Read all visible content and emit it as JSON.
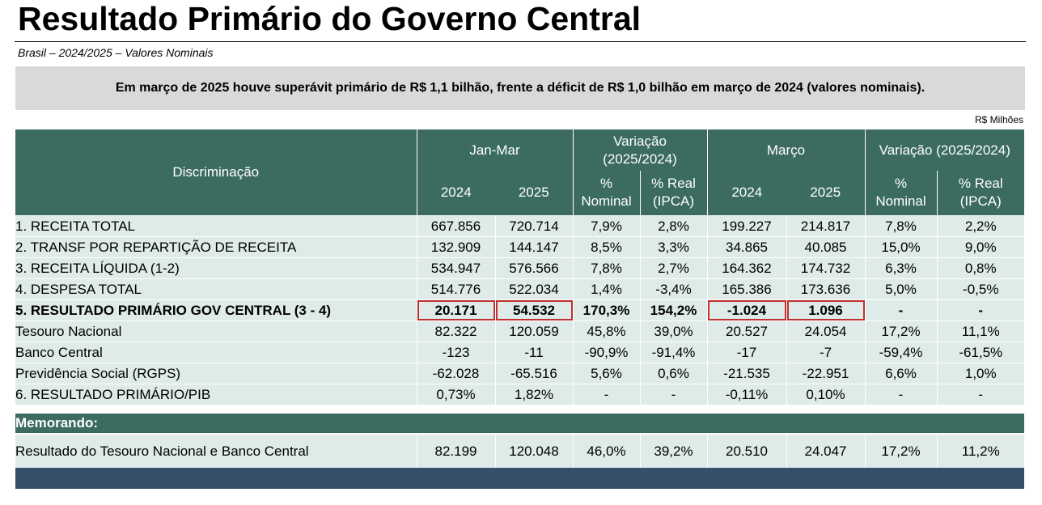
{
  "title": "Resultado Primário do Governo Central",
  "subtitle": "Brasil – 2024/2025 – Valores Nominais",
  "banner": "Em março de 2025 houve superávit primário de R$ 1,1 bilhão, frente a déficit de R$ 1,0 bilhão em março de 2024 (valores nominais).",
  "unit": "R$ Milhões",
  "header": {
    "discriminacao": "Discriminação",
    "janmar": "Jan-Mar",
    "variacao1_l1": "Variação",
    "variacao1_l2": "(2025/2024)",
    "marco": "Março",
    "variacao2": "Variação (2025/2024)",
    "y2024": "2024",
    "y2025": "2025",
    "pct_l1": "%",
    "pct_l2": "Nominal",
    "real_l1": "% Real",
    "real_l2": "(IPCA)"
  },
  "rows": [
    {
      "label": "1. RECEITA TOTAL",
      "v": [
        "667.856",
        "720.714",
        "7,9%",
        "2,8%",
        "199.227",
        "214.817",
        "7,8%",
        "2,2%"
      ]
    },
    {
      "label": "2. TRANSF POR REPARTIÇÃO DE RECEITA",
      "v": [
        "132.909",
        "144.147",
        "8,5%",
        "3,3%",
        "34.865",
        "40.085",
        "15,0%",
        "9,0%"
      ]
    },
    {
      "label": "3. RECEITA LÍQUIDA (1-2)",
      "v": [
        "534.947",
        "576.566",
        "7,8%",
        "2,7%",
        "164.362",
        "174.732",
        "6,3%",
        "0,8%"
      ]
    },
    {
      "label": "4. DESPESA TOTAL",
      "v": [
        "514.776",
        "522.034",
        "1,4%",
        "-3,4%",
        "165.386",
        "173.636",
        "5,0%",
        "-0,5%"
      ]
    },
    {
      "label": "5. RESULTADO PRIMÁRIO GOV CENTRAL (3 - 4)",
      "v": [
        "20.171",
        "54.532",
        "170,3%",
        "154,2%",
        "-1.024",
        "1.096",
        "-",
        "-"
      ]
    },
    {
      "label": "Tesouro Nacional",
      "v": [
        "82.322",
        "120.059",
        "45,8%",
        "39,0%",
        "20.527",
        "24.054",
        "17,2%",
        "11,1%"
      ]
    },
    {
      "label": "Banco Central",
      "v": [
        "-123",
        "-11",
        "-90,9%",
        "-91,4%",
        "-17",
        "-7",
        "-59,4%",
        "-61,5%"
      ]
    },
    {
      "label": "Previdência Social (RGPS)",
      "v": [
        "-62.028",
        "-65.516",
        "5,6%",
        "0,6%",
        "-21.535",
        "-22.951",
        "6,6%",
        "1,0%"
      ]
    },
    {
      "label": "6. RESULTADO PRIMÁRIO/PIB",
      "v": [
        "0,73%",
        "1,82%",
        "-",
        "-",
        "-0,11%",
        "0,10%",
        "-",
        "-"
      ]
    }
  ],
  "memo_label": "Memorando:",
  "memo_row": {
    "label": "Resultado do Tesouro Nacional e Banco Central",
    "v": [
      "82.199",
      "120.048",
      "46,0%",
      "39,2%",
      "20.510",
      "24.047",
      "17,2%",
      "11,2%"
    ]
  }
}
